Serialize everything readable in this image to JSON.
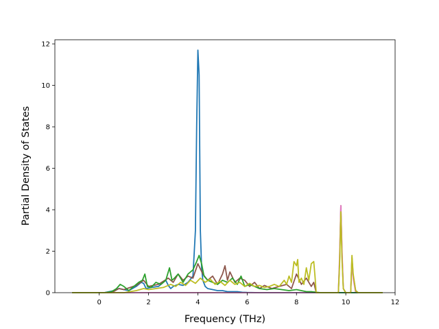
{
  "chart_data": {
    "type": "line",
    "title": "",
    "xlabel": "Frequency (THz)",
    "ylabel": "Partial Density of States",
    "xlim": [
      -1.8,
      12.0
    ],
    "ylim": [
      0,
      12.2
    ],
    "x_ticks": [
      0,
      2,
      4,
      6,
      8,
      10,
      12
    ],
    "y_ticks": [
      0,
      2,
      4,
      6,
      8,
      10,
      12
    ],
    "x_tick_labels": [
      "0",
      "2",
      "4",
      "6",
      "8",
      "10",
      "12"
    ],
    "y_tick_labels": [
      "0",
      "2",
      "4",
      "6",
      "8",
      "10",
      "12"
    ],
    "grid": false,
    "legend": "none",
    "series": [
      {
        "color": "#1f77b4",
        "x": [
          -1.1,
          0.2,
          0.6,
          0.8,
          1.0,
          1.2,
          1.5,
          1.7,
          1.8,
          1.9,
          2.1,
          2.4,
          2.7,
          2.8,
          2.9,
          3.0,
          3.2,
          3.4,
          3.6,
          3.8,
          3.9,
          3.95,
          4.0,
          4.05,
          4.1,
          4.15,
          4.2,
          4.3,
          4.4,
          4.6,
          4.8,
          5.0,
          5.2,
          5.4,
          5.6,
          5.8,
          6.0,
          6.5,
          7.0,
          8.0,
          9.0,
          10.0,
          11.5
        ],
        "y": [
          0,
          0,
          0.1,
          0.2,
          0.15,
          0.1,
          0.3,
          0.5,
          0.45,
          0.2,
          0.25,
          0.3,
          0.6,
          0.35,
          0.2,
          0.3,
          0.4,
          0.35,
          0.5,
          0.8,
          3.0,
          8.0,
          11.7,
          10.5,
          3.0,
          1.2,
          0.6,
          0.3,
          0.2,
          0.15,
          0.1,
          0.1,
          0.05,
          0.05,
          0.05,
          0.02,
          0.01,
          0,
          0,
          0,
          0,
          0,
          0
        ]
      },
      {
        "color": "#8c564b",
        "x": [
          -1.1,
          0.5,
          0.8,
          1.0,
          1.5,
          1.8,
          2.0,
          2.4,
          2.8,
          3.0,
          3.2,
          3.4,
          3.6,
          3.8,
          4.0,
          4.2,
          4.4,
          4.6,
          4.8,
          5.0,
          5.1,
          5.2,
          5.3,
          5.5,
          5.7,
          5.9,
          6.1,
          6.3,
          6.5,
          6.7,
          7.0,
          7.3,
          7.6,
          7.8,
          8.0,
          8.2,
          8.4,
          8.6,
          8.7,
          8.8,
          9.0,
          9.7,
          9.75,
          9.8,
          9.85,
          9.9,
          10.0,
          10.1,
          10.2,
          10.25,
          10.3,
          10.4,
          10.5,
          11.5
        ],
        "y": [
          0,
          0,
          0.2,
          0.15,
          0.35,
          0.6,
          0.3,
          0.4,
          0.7,
          0.5,
          0.9,
          0.6,
          0.8,
          0.7,
          1.4,
          0.9,
          0.6,
          0.8,
          0.4,
          0.9,
          1.3,
          0.6,
          1.0,
          0.5,
          0.7,
          0.6,
          0.3,
          0.5,
          0.2,
          0.35,
          0.2,
          0.3,
          0.4,
          0.2,
          0.9,
          0.4,
          0.7,
          0.3,
          0.5,
          0,
          0,
          0,
          1.5,
          4.2,
          1.8,
          0.2,
          0,
          0,
          0,
          1.7,
          0.8,
          0.1,
          0,
          0
        ]
      },
      {
        "color": "#e377c2",
        "x": [
          -1.1,
          9.7,
          9.75,
          9.8,
          9.85,
          9.9,
          10.0,
          10.1,
          10.2,
          10.25,
          10.3,
          10.4,
          11.5
        ],
        "y": [
          0,
          0,
          1.8,
          4.2,
          2.0,
          0.2,
          0,
          0,
          0,
          1.6,
          0.7,
          0,
          0
        ]
      },
      {
        "color": "#2ca02c",
        "x": [
          -1.1,
          0.2,
          0.5,
          0.7,
          0.85,
          1.0,
          1.2,
          1.4,
          1.6,
          1.75,
          1.85,
          1.95,
          2.1,
          2.3,
          2.5,
          2.7,
          2.85,
          2.95,
          3.05,
          3.2,
          3.4,
          3.6,
          3.8,
          3.95,
          4.05,
          4.15,
          4.25,
          4.4,
          4.6,
          4.8,
          5.0,
          5.2,
          5.4,
          5.6,
          5.75,
          5.9,
          6.1,
          6.3,
          6.5,
          6.8,
          7.1,
          7.4,
          7.7,
          8.0,
          8.2,
          8.4,
          8.6,
          8.8,
          9.0,
          11.5
        ],
        "y": [
          0,
          0,
          0.05,
          0.2,
          0.4,
          0.3,
          0.1,
          0.3,
          0.5,
          0.6,
          0.9,
          0.3,
          0.25,
          0.5,
          0.4,
          0.6,
          1.2,
          0.6,
          0.7,
          0.9,
          0.5,
          0.9,
          1.1,
          1.5,
          1.8,
          1.4,
          0.8,
          0.6,
          0.5,
          0.4,
          0.6,
          0.5,
          0.7,
          0.4,
          0.8,
          0.3,
          0.4,
          0.3,
          0.2,
          0.15,
          0.2,
          0.15,
          0.1,
          0.15,
          0.1,
          0.05,
          0.05,
          0.02,
          0,
          0
        ]
      },
      {
        "color": "#bcbd22",
        "x": [
          -1.1,
          1.0,
          1.5,
          1.8,
          2.0,
          2.3,
          2.6,
          2.9,
          3.1,
          3.3,
          3.5,
          3.7,
          3.9,
          4.1,
          4.3,
          4.5,
          4.7,
          4.9,
          5.1,
          5.3,
          5.5,
          5.7,
          5.9,
          6.1,
          6.3,
          6.5,
          6.7,
          6.9,
          7.1,
          7.3,
          7.5,
          7.6,
          7.7,
          7.8,
          7.9,
          8.0,
          8.05,
          8.1,
          8.2,
          8.3,
          8.4,
          8.5,
          8.6,
          8.7,
          8.75,
          8.8,
          9.7,
          9.75,
          9.8,
          9.85,
          9.9,
          10.0,
          10.1,
          10.2,
          10.25,
          10.3,
          10.4,
          10.5,
          11.5
        ],
        "y": [
          0,
          0,
          0.1,
          0.2,
          0.15,
          0.2,
          0.25,
          0.4,
          0.3,
          0.5,
          0.35,
          0.6,
          0.45,
          0.7,
          0.5,
          0.65,
          0.4,
          0.55,
          0.35,
          0.6,
          0.4,
          0.5,
          0.3,
          0.45,
          0.3,
          0.35,
          0.25,
          0.3,
          0.4,
          0.3,
          0.6,
          0.4,
          0.8,
          0.5,
          1.5,
          1.3,
          1.6,
          0.5,
          0.7,
          0.4,
          1.2,
          0.6,
          1.4,
          1.5,
          0.8,
          0,
          0,
          1.4,
          3.9,
          1.5,
          0.2,
          0,
          0,
          0,
          1.8,
          0.9,
          0.1,
          0,
          0
        ]
      }
    ]
  }
}
